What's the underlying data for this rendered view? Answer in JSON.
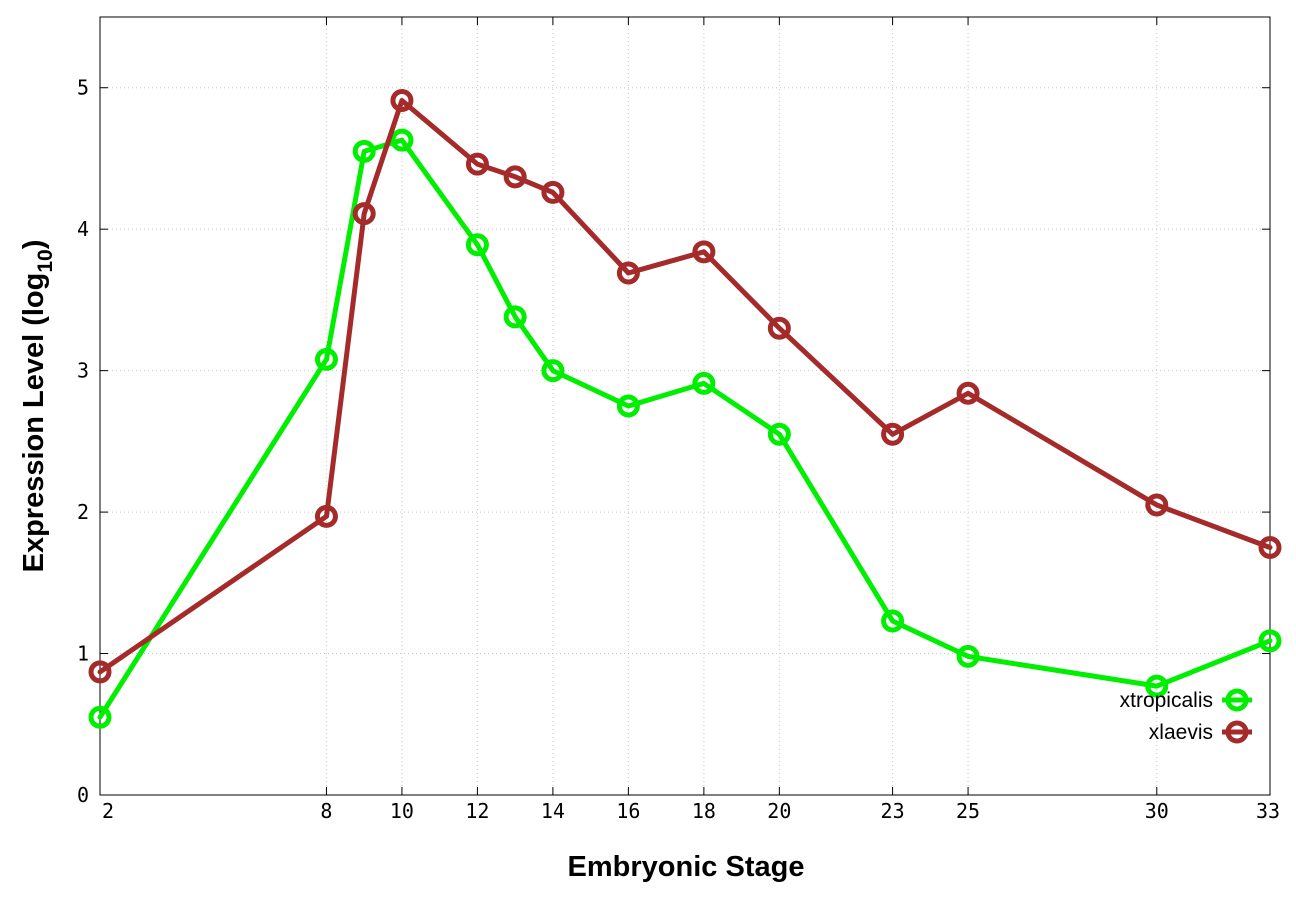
{
  "chart_data": {
    "type": "line",
    "title": "",
    "xlabel": "Embryonic Stage",
    "ylabel": {
      "text": "Expression Level (log",
      "subscript": "10",
      "suffix": ")"
    },
    "x_ticks": [
      "2",
      "8",
      "10",
      "12",
      "14",
      "16",
      "18",
      "20",
      "23",
      "25",
      "30",
      "33"
    ],
    "x_tick_positions": [
      2,
      8,
      10,
      12,
      14,
      16,
      18,
      20,
      23,
      25,
      30,
      33
    ],
    "y_ticks": [
      "0",
      "1",
      "2",
      "3",
      "4",
      "5"
    ],
    "y_tick_values": [
      0,
      1,
      2,
      3,
      4,
      5
    ],
    "xlim": [
      2,
      33
    ],
    "ylim": [
      0,
      5.5
    ],
    "grid": true,
    "legend_position": "bottom-right",
    "series": [
      {
        "name": "xtropicalis",
        "color": "#00ee00",
        "x": [
          2,
          8,
          9,
          10,
          12,
          13,
          14,
          16,
          18,
          20,
          23,
          25,
          30,
          33
        ],
        "y": [
          0.55,
          3.08,
          4.55,
          4.63,
          3.89,
          3.38,
          3.0,
          2.75,
          2.91,
          2.55,
          1.23,
          0.98,
          0.77,
          1.09
        ]
      },
      {
        "name": "xlaevis",
        "color": "#a52a2a",
        "x": [
          2,
          8,
          9,
          10,
          12,
          13,
          14,
          16,
          18,
          20,
          23,
          25,
          30,
          33
        ],
        "y": [
          0.87,
          1.97,
          4.11,
          4.91,
          4.46,
          4.37,
          4.26,
          3.69,
          3.84,
          3.3,
          2.55,
          2.84,
          2.05,
          1.75
        ]
      }
    ]
  }
}
